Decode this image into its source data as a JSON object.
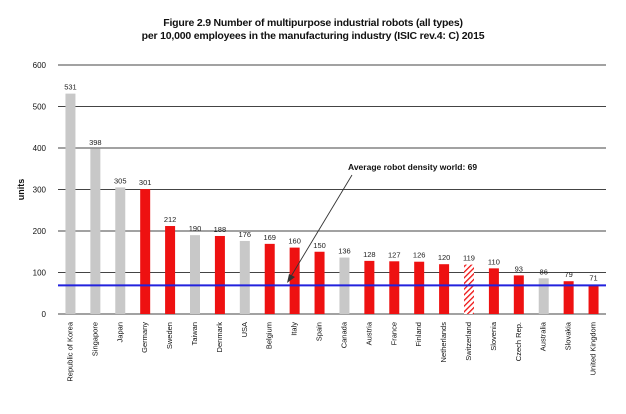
{
  "chart_data": {
    "type": "bar",
    "title_lines": [
      "Figure 2.9 Number of multipurpose industrial robots (all types)",
      "per 10,000 employees in the manufacturing industry (ISIC rev.4: C) 2015"
    ],
    "ylabel": "units",
    "xlabel": "",
    "ylim": [
      0,
      600
    ],
    "yticks": [
      0,
      100,
      200,
      300,
      400,
      500,
      600
    ],
    "grid": true,
    "legend": "none",
    "categories": [
      "Republic of Korea",
      "Singapore",
      "Japan",
      "Germany",
      "Sweden",
      "Taiwan",
      "Denmark",
      "USA",
      "Belgium",
      "Italy",
      "Spain",
      "Canada",
      "Austria",
      "France",
      "Finland",
      "Netherlands",
      "Switzerland",
      "Slovenia",
      "Czech Rep.",
      "Australia",
      "Slovakia",
      "United Kingdom"
    ],
    "values": [
      531,
      398,
      305,
      301,
      212,
      190,
      188,
      176,
      169,
      160,
      150,
      136,
      128,
      127,
      126,
      120,
      119,
      110,
      93,
      86,
      79,
      71
    ],
    "bar_styles": [
      "gray",
      "gray",
      "gray",
      "red",
      "red",
      "gray",
      "red",
      "gray",
      "red",
      "red",
      "red",
      "gray",
      "red",
      "red",
      "red",
      "red",
      "hatched",
      "red",
      "red",
      "gray",
      "red",
      "red"
    ],
    "colors": {
      "red": "#ee1111",
      "gray": "#c8c8c8",
      "reference_line": "#2222dd",
      "grid": "#444444"
    },
    "reference_line": {
      "value": 69,
      "label": "Average robot density world: 69"
    }
  }
}
